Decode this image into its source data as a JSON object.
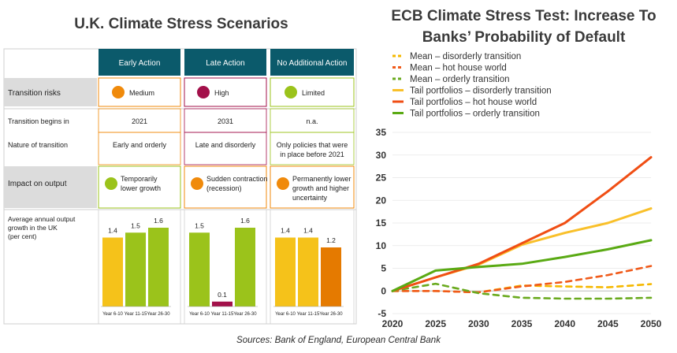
{
  "left_title": "U.K. Climate Stress Scenarios",
  "right_title_line1": "ECB Climate Stress Test: Increase To",
  "right_title_line2": "Banks’ Probability of Default",
  "source": "Sources: Bank of England, European Central Bank",
  "colors": {
    "header_teal": "#0b5a6b",
    "row_gray": "#dcdcdc",
    "yellow": "#f5c21a",
    "green": "#9bc31b",
    "orange": "#f08a0b",
    "dark_orange": "#e57a00",
    "crimson": "#a3104a",
    "mean_disorderly": "#f5b800",
    "mean_hot": "#f05a1a",
    "mean_orderly": "#6aaa1e",
    "tail_disorderly": "#f9c02a",
    "tail_hot": "#f04e14",
    "tail_orderly": "#5aaa14"
  },
  "scenario_table": {
    "columns": [
      "Early Action",
      "Late Action",
      "No Additional Action"
    ],
    "rows": {
      "transition_risks": {
        "label": "Transition risks",
        "values": [
          "Medium",
          "High",
          "Limited"
        ],
        "dot_colors": [
          "#f08a0b",
          "#a3104a",
          "#9bc31b"
        ]
      },
      "transition_begins": {
        "label": "Transition begins in",
        "values": [
          "2021",
          "2031",
          "n.a."
        ]
      },
      "nature": {
        "label": "Nature of transition",
        "values": [
          "Early and orderly",
          "Late and disorderly",
          "Only policies that were in place before 2021"
        ],
        "value3_line1": "Only policies that were",
        "value3_line2": "in place before 2021"
      },
      "impact": {
        "label": "Impact on output",
        "values": [
          [
            "Temporarily",
            "lower growth"
          ],
          [
            "Sudden contraction",
            "(recession)"
          ],
          [
            "Permanently lower",
            "growth and higher",
            "uncertainty"
          ]
        ],
        "dot_colors": [
          "#9bc31b",
          "#f08a0b",
          "#f08a0b"
        ]
      },
      "growth": {
        "label_line1": "Average annual output",
        "label_line2": "growth in the UK",
        "label_line3": "(per cent)"
      }
    }
  },
  "chart_data": [
    {
      "type": "bar",
      "title": "Average annual output growth in the UK (per cent)",
      "categories": [
        "Year 6-10",
        "Year 11-15",
        "Year 26-30"
      ],
      "ylim": [
        0,
        1.6
      ],
      "groups": [
        {
          "name": "Early Action",
          "values": [
            1.4,
            1.5,
            1.6
          ],
          "colors": [
            "#f5c21a",
            "#9bc31b",
            "#9bc31b"
          ]
        },
        {
          "name": "Late Action",
          "values": [
            1.5,
            0.1,
            1.6
          ],
          "colors": [
            "#9bc31b",
            "#a3104a",
            "#9bc31b"
          ]
        },
        {
          "name": "No Additional Action",
          "values": [
            1.4,
            1.4,
            1.2
          ],
          "colors": [
            "#f5c21a",
            "#f5c21a",
            "#e57a00"
          ]
        }
      ]
    },
    {
      "type": "line",
      "title": "ECB Climate Stress Test: Increase To Banks’ Probability of Default",
      "x": [
        2020,
        2025,
        2030,
        2035,
        2040,
        2045,
        2050
      ],
      "xlim": [
        2020,
        2050
      ],
      "ylim": [
        -5,
        35
      ],
      "yticks": [
        -5,
        0,
        5,
        10,
        15,
        20,
        25,
        30,
        35
      ],
      "xticks": [
        2020,
        2025,
        2030,
        2035,
        2040,
        2045,
        2050
      ],
      "series": [
        {
          "name": "Mean – disorderly transition",
          "style": "dashed",
          "color": "#f5b800",
          "x": [
            2020,
            2025,
            2030,
            2035,
            2040,
            2045,
            2050
          ],
          "values": [
            0,
            0.0,
            -0.3,
            1.2,
            1.0,
            0.8,
            1.5
          ]
        },
        {
          "name": "Mean – hot house world",
          "style": "dashed",
          "color": "#f05a1a",
          "x": [
            2020,
            2025,
            2030,
            2035,
            2040,
            2045,
            2050
          ],
          "values": [
            0,
            0.0,
            -0.3,
            1.0,
            2.0,
            3.5,
            5.5
          ]
        },
        {
          "name": "Mean – orderly transition",
          "style": "dashed",
          "color": "#6aaa1e",
          "x": [
            2020,
            2025,
            2030,
            2035,
            2040,
            2045,
            2050
          ],
          "values": [
            0,
            1.6,
            -0.5,
            -1.5,
            -1.7,
            -1.7,
            -1.5
          ]
        },
        {
          "name": "Tail portfolios – disorderly transition",
          "style": "solid",
          "color": "#f9c02a",
          "x": [
            2020,
            2025,
            2030,
            2035,
            2040,
            2045,
            2050
          ],
          "values": [
            0,
            3.0,
            5.8,
            10.2,
            12.8,
            15.0,
            18.2
          ]
        },
        {
          "name": "Tail portfolios – hot house world",
          "style": "solid",
          "color": "#f04e14",
          "x": [
            2020,
            2025,
            2030,
            2035,
            2040,
            2045,
            2050
          ],
          "values": [
            0,
            3.0,
            6.0,
            10.5,
            15.0,
            22.0,
            29.5
          ]
        },
        {
          "name": "Tail portfolios – orderly transition",
          "style": "solid",
          "color": "#5aaa14",
          "x": [
            2020,
            2025,
            2030,
            2035,
            2040,
            2045,
            2050
          ],
          "values": [
            0,
            4.5,
            5.3,
            6.0,
            7.5,
            9.2,
            11.2
          ]
        }
      ]
    }
  ]
}
